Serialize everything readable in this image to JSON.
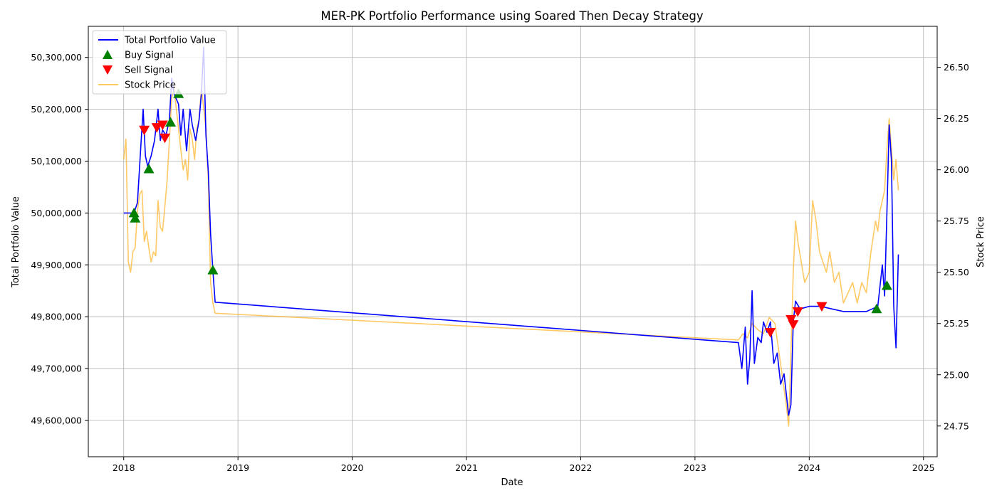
{
  "chart_data": {
    "type": "line",
    "title": "MER-PK Portfolio Performance using Soared Then Decay Strategy",
    "xlabel": "Date",
    "ylabel": "Total Portfolio Value",
    "y2label": "Stock Price",
    "xlim": [
      2017.69,
      2025.12
    ],
    "ylim": [
      49530000,
      50360000
    ],
    "y2lim": [
      24.6,
      26.7
    ],
    "x_ticks": [
      2018,
      2019,
      2020,
      2021,
      2022,
      2023,
      2024,
      2025
    ],
    "x_tick_labels": [
      "2018",
      "2019",
      "2020",
      "2021",
      "2022",
      "2023",
      "2024",
      "2025"
    ],
    "y_ticks": [
      49600000,
      49700000,
      49800000,
      49900000,
      50000000,
      50100000,
      50200000,
      50300000
    ],
    "y_tick_labels": [
      "49,600,000",
      "49,700,000",
      "49,800,000",
      "49,900,000",
      "50,000,000",
      "50,100,000",
      "50,200,000",
      "50,300,000"
    ],
    "y2_ticks": [
      24.75,
      25.0,
      25.25,
      25.5,
      25.75,
      26.0,
      26.25,
      26.5
    ],
    "y2_tick_labels": [
      "24.75",
      "25.00",
      "25.25",
      "25.50",
      "25.75",
      "26.00",
      "26.25",
      "26.50"
    ],
    "grid": true,
    "legend_position": "top-left",
    "legend": [
      "Total Portfolio Value",
      "Buy Signal",
      "Sell Signal",
      "Stock Price"
    ],
    "colors": {
      "portfolio": "#0000ff",
      "buy": "#008000",
      "sell": "#ff0000",
      "price": "#ffa500"
    },
    "series": [
      {
        "name": "Total Portfolio Value",
        "axis": "left",
        "x": [
          2018.0,
          2018.06,
          2018.09,
          2018.12,
          2018.15,
          2018.17,
          2018.19,
          2018.21,
          2018.24,
          2018.27,
          2018.3,
          2018.32,
          2018.34,
          2018.37,
          2018.4,
          2018.42,
          2018.44,
          2018.46,
          2018.48,
          2018.5,
          2018.52,
          2018.55,
          2018.58,
          2018.6,
          2018.63,
          2018.66,
          2018.68,
          2018.7,
          2018.72,
          2018.74,
          2018.76,
          2018.78,
          2018.8,
          2023.38,
          2023.41,
          2023.44,
          2023.46,
          2023.48,
          2023.5,
          2023.52,
          2023.55,
          2023.58,
          2023.6,
          2023.63,
          2023.66,
          2023.69,
          2023.72,
          2023.75,
          2023.78,
          2023.8,
          2023.82,
          2023.84,
          2023.86,
          2023.88,
          2023.92,
          2024.0,
          2024.1,
          2024.2,
          2024.3,
          2024.4,
          2024.5,
          2024.55,
          2024.6,
          2024.62,
          2024.64,
          2024.66,
          2024.68,
          2024.7,
          2024.72,
          2024.74,
          2024.76,
          2024.78
        ],
        "y": [
          50000000,
          50000000,
          50000000,
          50020000,
          50130000,
          50200000,
          50110000,
          50090000,
          50110000,
          50140000,
          50200000,
          50140000,
          50160000,
          50150000,
          50180000,
          50260000,
          50230000,
          50220000,
          50210000,
          50150000,
          50200000,
          50120000,
          50200000,
          50170000,
          50140000,
          50180000,
          50230000,
          50320000,
          50150000,
          50080000,
          49960000,
          49890000,
          49828000,
          49750000,
          49700000,
          49780000,
          49670000,
          49720000,
          49850000,
          49710000,
          49760000,
          49750000,
          49790000,
          49770000,
          49790000,
          49710000,
          49730000,
          49670000,
          49690000,
          49650000,
          49610000,
          49630000,
          49790000,
          49830000,
          49815000,
          49820000,
          49820000,
          49815000,
          49810000,
          49810000,
          49810000,
          49815000,
          49820000,
          49860000,
          49900000,
          49840000,
          50000000,
          50170000,
          50100000,
          49820000,
          49740000,
          49920000
        ]
      },
      {
        "name": "Stock Price",
        "axis": "right",
        "x": [
          2018.0,
          2018.02,
          2018.04,
          2018.06,
          2018.08,
          2018.1,
          2018.12,
          2018.14,
          2018.16,
          2018.18,
          2018.2,
          2018.22,
          2018.24,
          2018.26,
          2018.28,
          2018.3,
          2018.32,
          2018.34,
          2018.36,
          2018.38,
          2018.4,
          2018.42,
          2018.44,
          2018.46,
          2018.48,
          2018.5,
          2018.52,
          2018.54,
          2018.56,
          2018.58,
          2018.6,
          2018.62,
          2018.64,
          2018.66,
          2018.68,
          2018.7,
          2018.72,
          2018.74,
          2018.76,
          2018.78,
          2018.8,
          2023.38,
          2023.42,
          2023.46,
          2023.5,
          2023.55,
          2023.6,
          2023.65,
          2023.7,
          2023.75,
          2023.8,
          2023.82,
          2023.84,
          2023.86,
          2023.88,
          2023.9,
          2023.93,
          2023.96,
          2024.0,
          2024.03,
          2024.06,
          2024.09,
          2024.12,
          2024.15,
          2024.18,
          2024.22,
          2024.26,
          2024.3,
          2024.34,
          2024.38,
          2024.42,
          2024.46,
          2024.5,
          2024.54,
          2024.58,
          2024.6,
          2024.62,
          2024.64,
          2024.66,
          2024.68,
          2024.7,
          2024.72,
          2024.74,
          2024.76,
          2024.78
        ],
        "y": [
          26.05,
          26.15,
          25.55,
          25.5,
          25.6,
          25.62,
          25.8,
          25.88,
          25.9,
          25.65,
          25.7,
          25.62,
          25.55,
          25.6,
          25.58,
          25.85,
          25.72,
          25.7,
          25.82,
          25.95,
          26.15,
          26.35,
          26.4,
          26.3,
          26.2,
          26.1,
          26.0,
          26.05,
          25.95,
          26.2,
          26.15,
          26.05,
          26.2,
          26.25,
          26.4,
          26.3,
          26.2,
          25.95,
          25.45,
          25.35,
          25.3,
          25.17,
          25.2,
          25.18,
          25.25,
          25.22,
          25.2,
          25.28,
          25.25,
          25.05,
          24.85,
          24.75,
          25.1,
          25.5,
          25.75,
          25.65,
          25.55,
          25.45,
          25.5,
          25.85,
          25.75,
          25.6,
          25.55,
          25.5,
          25.6,
          25.45,
          25.5,
          25.35,
          25.4,
          25.45,
          25.35,
          25.45,
          25.4,
          25.6,
          25.75,
          25.7,
          25.8,
          25.85,
          25.9,
          26.1,
          26.25,
          26.1,
          25.95,
          26.05,
          25.9
        ]
      }
    ],
    "buy_signals": {
      "name": "Buy Signal",
      "x": [
        2018.09,
        2018.1,
        2018.22,
        2018.41,
        2018.48,
        2018.78,
        2024.59,
        2024.68
      ],
      "y": [
        50000000,
        49990000,
        50085000,
        50175000,
        50230000,
        49890000,
        49815000,
        49860000
      ]
    },
    "sell_signals": {
      "name": "Sell Signal",
      "x": [
        2018.18,
        2018.29,
        2018.34,
        2018.36,
        2023.66,
        2023.84,
        2023.86,
        2023.9,
        2024.11
      ],
      "y": [
        50160000,
        50165000,
        50170000,
        50145000,
        49770000,
        49795000,
        49785000,
        49810000,
        49820000
      ]
    }
  }
}
